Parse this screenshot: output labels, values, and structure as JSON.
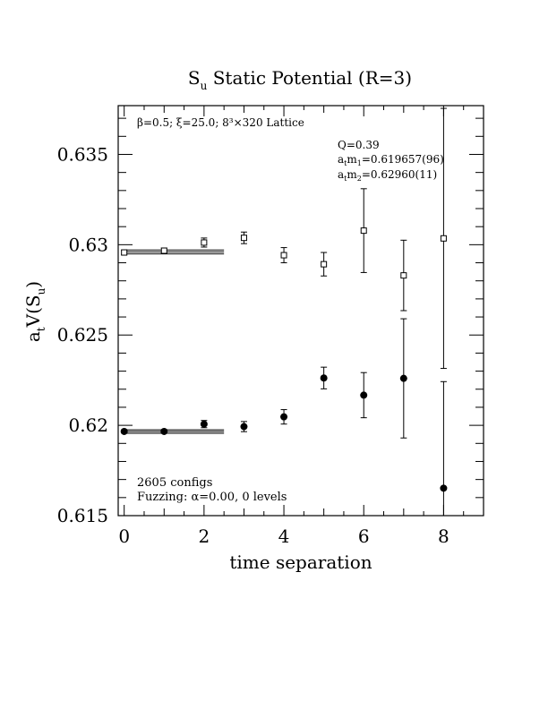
{
  "chart_data": {
    "type": "scatter",
    "title": "S",
    "title_sub": "u",
    "title_rest": " Static Potential (R=3)",
    "xlabel": "time separation",
    "ylabel": "a",
    "ylabel_sub1": "t",
    "ylabel_mid": "V(S",
    "ylabel_sub2": "u",
    "ylabel_end": ")",
    "xlim": [
      -0.15,
      9.0
    ],
    "ylim": [
      0.615,
      0.6377
    ],
    "xticks": [
      0,
      2,
      4,
      6,
      8
    ],
    "xtick_labels": [
      "0",
      "2",
      "4",
      "6",
      "8"
    ],
    "yticks": [
      0.615,
      0.62,
      0.625,
      0.63,
      0.635
    ],
    "ytick_labels": [
      "0.615",
      "0.62",
      "0.625",
      "0.63",
      "0.635"
    ],
    "annotations": {
      "lattice": "β=0.5; ξ=25.0; 8³×320 Lattice",
      "q": "Q=0.39",
      "m1_a": "a",
      "m1_t": "t",
      "m1_m": "m",
      "m1_sub": "1",
      "m1_val": "=0.619657(96)",
      "m2_a": "a",
      "m2_t": "t",
      "m2_m": "m",
      "m2_sub": "2",
      "m2_val": "=0.62960(11)",
      "configs": "2605 configs",
      "fuzzing": "Fuzzing: α=0.00, 0 levels"
    },
    "series": [
      {
        "marker": "square-open",
        "points": [
          {
            "x": 0,
            "y": 0.62957,
            "err": 0.0001
          },
          {
            "x": 1,
            "y": 0.62967,
            "err": 0.00015
          },
          {
            "x": 2,
            "y": 0.63012,
            "err": 0.00025
          },
          {
            "x": 3,
            "y": 0.63038,
            "err": 0.00032
          },
          {
            "x": 4,
            "y": 0.62942,
            "err": 0.00042
          },
          {
            "x": 5,
            "y": 0.62892,
            "err": 0.00065
          },
          {
            "x": 6,
            "y": 0.63078,
            "err": 0.00232
          },
          {
            "x": 7,
            "y": 0.6283,
            "err": 0.00195
          },
          {
            "x": 8,
            "y": 0.63035,
            "err": 0.0072
          }
        ]
      },
      {
        "marker": "circle-filled",
        "points": [
          {
            "x": 0,
            "y": 0.61966,
            "err": 8e-05
          },
          {
            "x": 1,
            "y": 0.61966,
            "err": 0.0001
          },
          {
            "x": 2,
            "y": 0.62007,
            "err": 0.0002
          },
          {
            "x": 3,
            "y": 0.61993,
            "err": 0.00028
          },
          {
            "x": 4,
            "y": 0.62047,
            "err": 0.0004
          },
          {
            "x": 5,
            "y": 0.62262,
            "err": 0.0006
          },
          {
            "x": 6,
            "y": 0.62167,
            "err": 0.00125
          },
          {
            "x": 7,
            "y": 0.6226,
            "err": 0.0033
          },
          {
            "x": 8,
            "y": 0.61652,
            "err": 0.0059
          }
        ]
      }
    ],
    "fits": [
      {
        "y": 0.6296,
        "err": 0.00011,
        "x_range": [
          0,
          2.5
        ]
      },
      {
        "y": 0.619657,
        "err": 9.6e-05,
        "x_range": [
          0,
          2.5
        ]
      }
    ],
    "grid": false,
    "legend": "none"
  }
}
